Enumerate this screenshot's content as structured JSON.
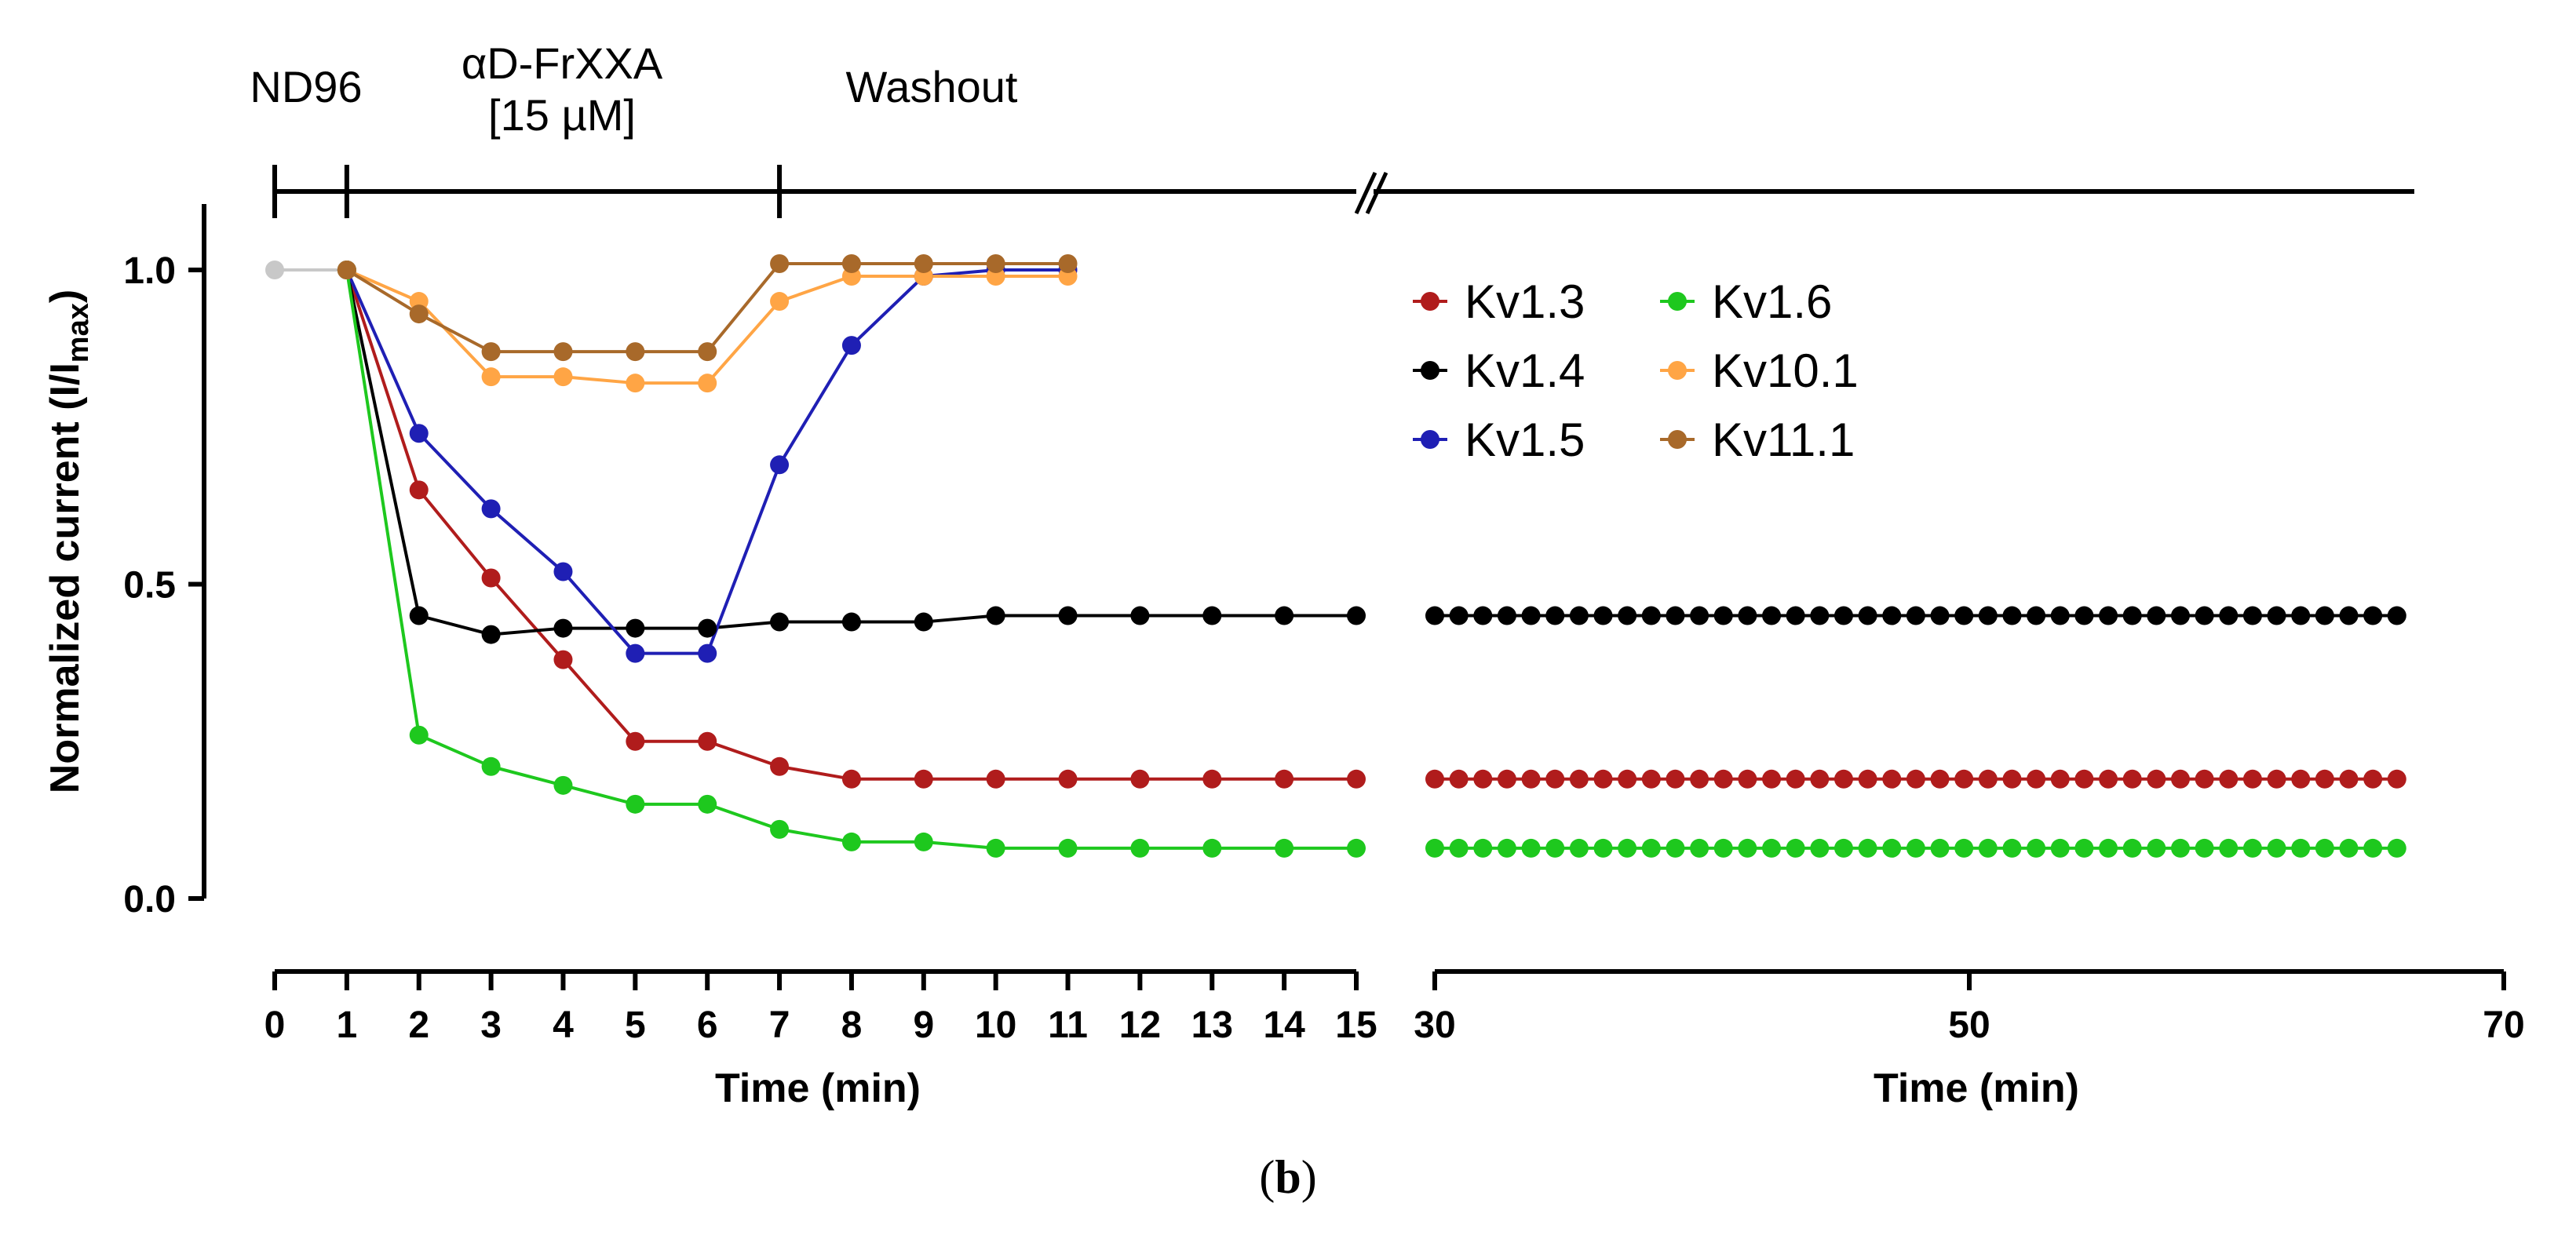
{
  "chart_data": {
    "type": "line",
    "panel_label": {
      "open": "(",
      "letter": "b",
      "close": ")"
    },
    "ylabel_main": "Normalized current (I/I",
    "ylabel_sub": "max",
    "ylabel_close": ")",
    "ylim": [
      0,
      1.1
    ],
    "yticks": [
      0.0,
      0.5,
      1.0
    ],
    "ytick_labels": [
      "0.0",
      "0.5",
      "1.0"
    ],
    "left_panel": {
      "xlabel": "Time (min)",
      "xlim": [
        0,
        15
      ],
      "xticks": [
        0,
        1,
        2,
        3,
        4,
        5,
        6,
        7,
        8,
        9,
        10,
        11,
        12,
        13,
        14,
        15
      ],
      "xtick_labels": [
        "0",
        "1",
        "2",
        "3",
        "4",
        "5",
        "6",
        "7",
        "8",
        "9",
        "10",
        "11",
        "12",
        "13",
        "14",
        "15"
      ]
    },
    "right_panel": {
      "xlabel": "Time (min)",
      "xlim": [
        30,
        70
      ],
      "xticks": [
        30,
        50,
        70
      ],
      "xtick_labels": [
        "30",
        "50",
        "70"
      ],
      "x_start": 30,
      "x_step": 0.9,
      "x_count": 41
    },
    "conditions": [
      {
        "line1": "ND96",
        "line2": "",
        "start": 0
      },
      {
        "line1": "αD-FrXXA",
        "line2": "[15 µM]",
        "start": 1
      },
      {
        "line1": "Washout",
        "line2": "",
        "start": 7
      }
    ],
    "baseline": {
      "color": "#c8c8c8",
      "x": [
        0,
        1
      ],
      "values": [
        1.0,
        1.0
      ]
    },
    "series": [
      {
        "name": "Kv1.3",
        "color": "#b01c1c",
        "x": [
          1,
          2,
          3,
          4,
          5,
          6,
          7,
          8,
          9,
          10,
          11,
          12,
          13,
          14,
          15
        ],
        "values": [
          1.0,
          0.65,
          0.51,
          0.38,
          0.25,
          0.25,
          0.21,
          0.19,
          0.19,
          0.19,
          0.19,
          0.19,
          0.19,
          0.19,
          0.19
        ],
        "right_value": 0.19
      },
      {
        "name": "Kv1.4",
        "color": "#000000",
        "x": [
          1,
          2,
          3,
          4,
          5,
          6,
          7,
          8,
          9,
          10,
          11,
          12,
          13,
          14,
          15
        ],
        "values": [
          1.0,
          0.45,
          0.42,
          0.43,
          0.43,
          0.43,
          0.44,
          0.44,
          0.44,
          0.45,
          0.45,
          0.45,
          0.45,
          0.45,
          0.45
        ],
        "right_value": 0.45
      },
      {
        "name": "Kv1.5",
        "color": "#1f1fb4",
        "x": [
          1,
          2,
          3,
          4,
          5,
          6,
          7,
          8,
          9,
          10,
          11
        ],
        "values": [
          1.0,
          0.74,
          0.62,
          0.52,
          0.39,
          0.39,
          0.69,
          0.88,
          0.99,
          1.0,
          1.0
        ],
        "right_value": null
      },
      {
        "name": "Kv1.6",
        "color": "#1ec81e",
        "x": [
          1,
          2,
          3,
          4,
          5,
          6,
          7,
          8,
          9,
          10,
          11,
          12,
          13,
          14,
          15
        ],
        "values": [
          1.0,
          0.26,
          0.21,
          0.18,
          0.15,
          0.15,
          0.11,
          0.09,
          0.09,
          0.08,
          0.08,
          0.08,
          0.08,
          0.08,
          0.08
        ],
        "right_value": 0.08
      },
      {
        "name": "Kv10.1",
        "color": "#ffa545",
        "x": [
          1,
          2,
          3,
          4,
          5,
          6,
          7,
          8,
          9,
          10,
          11
        ],
        "values": [
          1.0,
          0.95,
          0.83,
          0.83,
          0.82,
          0.82,
          0.95,
          0.99,
          0.99,
          0.99,
          0.99
        ],
        "right_value": null
      },
      {
        "name": "Kv11.1",
        "color": "#a8692a",
        "x": [
          1,
          2,
          3,
          4,
          5,
          6,
          7,
          8,
          9,
          10,
          11
        ],
        "values": [
          1.0,
          0.93,
          0.87,
          0.87,
          0.87,
          0.87,
          1.01,
          1.01,
          1.01,
          1.01,
          1.01
        ],
        "right_value": null
      }
    ],
    "legend_position": "top-right"
  }
}
